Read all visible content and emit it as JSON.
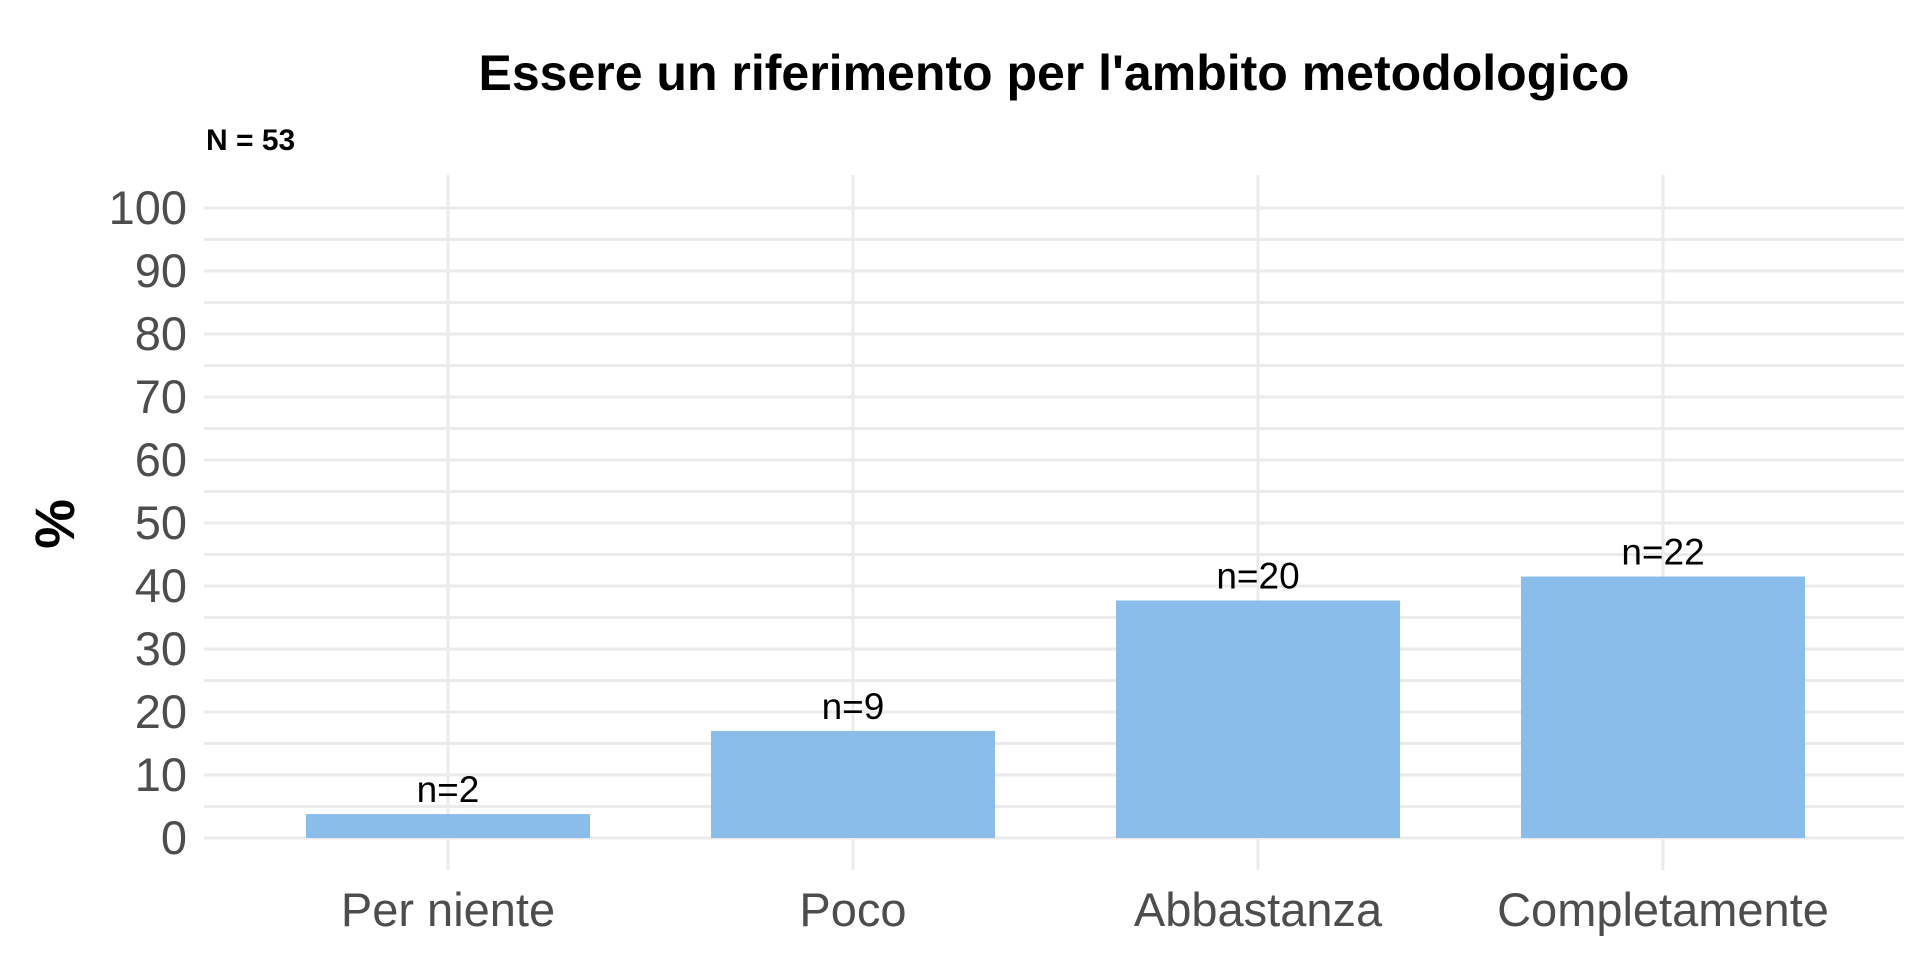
{
  "chart_data": {
    "type": "bar",
    "title": "Essere un riferimento per l'ambito metodologico",
    "subtitle": "N = 53",
    "xlabel": "",
    "ylabel": "%",
    "categories": [
      "Per niente",
      "Poco",
      "Abbastanza",
      "Completamente"
    ],
    "values": [
      3.8,
      17.0,
      37.7,
      41.5
    ],
    "data_labels": [
      "n=2",
      "n=9",
      "n=20",
      "n=22"
    ],
    "ylim": [
      0,
      100
    ],
    "yticks": [
      "0",
      "10",
      "20",
      "30",
      "40",
      "50",
      "60",
      "70",
      "80",
      "90",
      "100"
    ],
    "grid": true,
    "legend": "none",
    "bar_color": "#8BBDEA"
  }
}
